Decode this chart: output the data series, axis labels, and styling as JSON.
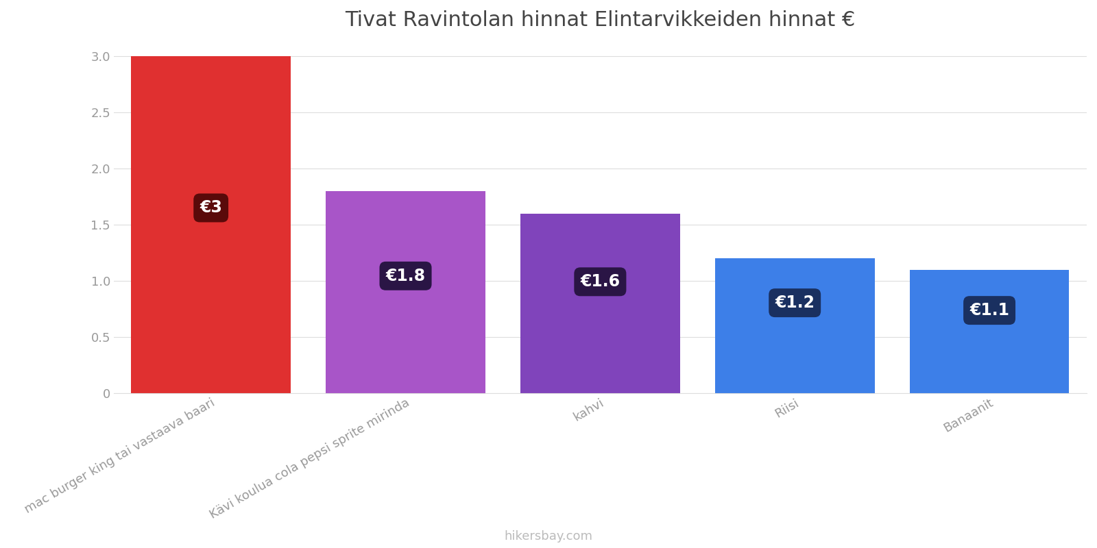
{
  "title": "Tivat Ravintolan hinnat Elintarvikkeiden hinnat €",
  "categories": [
    "mac burger king tai vastaava baari",
    "Kävi koulua cola pepsi sprite mirinda",
    "kahvi",
    "Riisi",
    "Banaanit"
  ],
  "values": [
    3.0,
    1.8,
    1.6,
    1.2,
    1.1
  ],
  "bar_colors": [
    "#e03030",
    "#a855c8",
    "#8044bb",
    "#3d7fe8",
    "#3d7fe8"
  ],
  "label_texts": [
    "€3",
    "€1.8",
    "€1.6",
    "€1.2",
    "€1.1"
  ],
  "label_bg_colors": [
    "#5a0a0a",
    "#2a1545",
    "#2a1545",
    "#1a3060",
    "#1a3060"
  ],
  "ylim": [
    0,
    3.1
  ],
  "yticks": [
    0.0,
    0.5,
    1.0,
    1.5,
    2.0,
    2.5,
    3.0
  ],
  "footer_text": "hikersbay.com",
  "title_fontsize": 22,
  "label_fontsize": 17,
  "tick_fontsize": 13,
  "footer_fontsize": 13,
  "background_color": "#ffffff",
  "grid_color": "#dddddd"
}
